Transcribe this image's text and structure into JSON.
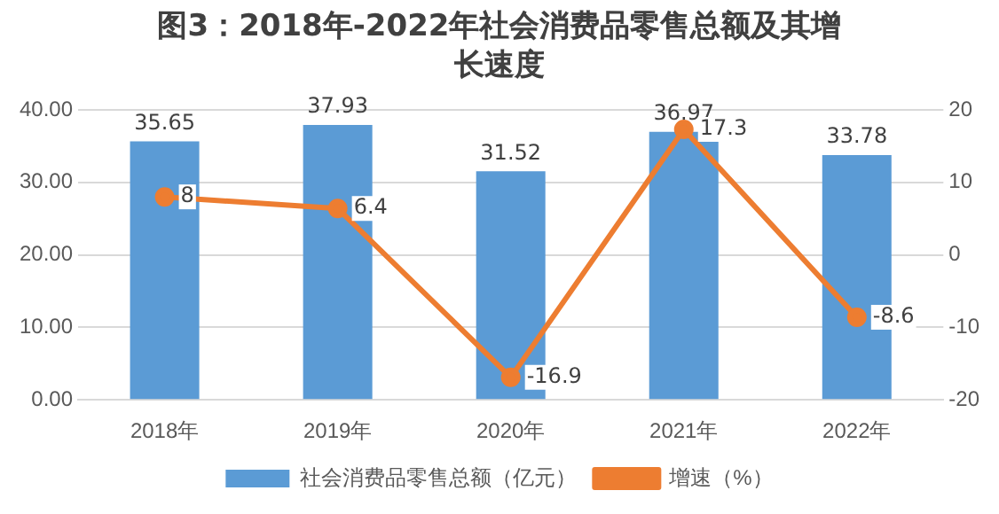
{
  "chart_data": {
    "type": "bar",
    "title": "图3：2018年-2022年社会消费品零售总额及其增长速度",
    "categories": [
      "2018年",
      "2019年",
      "2020年",
      "2021年",
      "2022年"
    ],
    "series": [
      {
        "name": "社会消费品零售总额（亿元）",
        "color": "#5b9bd5",
        "values": [
          35.65,
          37.93,
          31.52,
          36.97,
          33.78
        ]
      },
      {
        "name": "增速（%）",
        "type": "line",
        "axis": "y2",
        "color": "#ed7d31",
        "values": [
          8,
          6.4,
          -16.9,
          17.3,
          -8.6
        ],
        "marker": "circle",
        "line_style": "solid"
      }
    ],
    "ylim": [
      0,
      40
    ],
    "yticks": [
      {
        "value": 0,
        "label": "0.00"
      },
      {
        "value": 10,
        "label": "10.00"
      },
      {
        "value": 20,
        "label": "20.00"
      },
      {
        "value": 30,
        "label": "30.00"
      },
      {
        "value": 40,
        "label": "40.00"
      }
    ],
    "y2lim": [
      -20,
      20
    ],
    "y2ticks": [
      -20,
      -10,
      0,
      10,
      20
    ],
    "grid": "y",
    "legend": "bottom",
    "data_labels": true
  }
}
